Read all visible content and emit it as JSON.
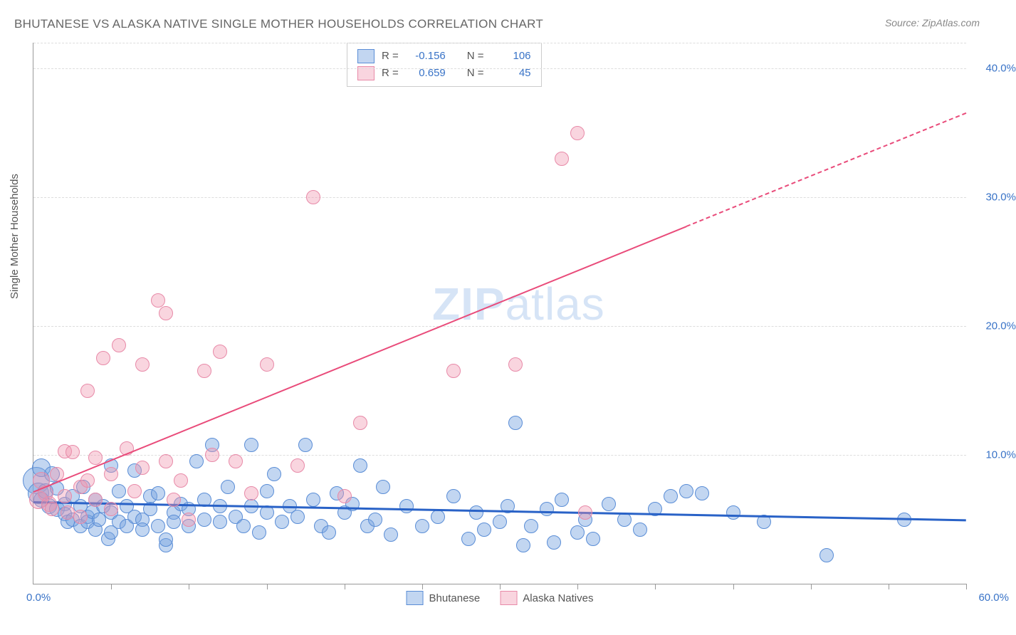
{
  "title": "BHUTANESE VS ALASKA NATIVE SINGLE MOTHER HOUSEHOLDS CORRELATION CHART",
  "source": "Source: ZipAtlas.com",
  "y_axis_label": "Single Mother Households",
  "watermark_1": "ZIP",
  "watermark_2": "atlas",
  "chart": {
    "type": "scatter",
    "title_fontsize": 17,
    "title_color": "#666666",
    "axis_label_fontsize": 15,
    "axis_label_color": "#555555",
    "tick_label_color": "#3973c7",
    "tick_label_fontsize": 15,
    "background_color": "#ffffff",
    "grid_color": "#dddddd",
    "grid_style": "dashed",
    "axis_line_color": "#999999",
    "xlim": [
      0,
      60
    ],
    "ylim": [
      0,
      42
    ],
    "x_tick_step": 5,
    "y_grid_positions": [
      10,
      20,
      30,
      40
    ],
    "y_tick_labels": [
      "10.0%",
      "20.0%",
      "30.0%",
      "40.0%"
    ],
    "x_origin_label": "0.0%",
    "x_end_label": "60.0%",
    "marker_radius_default": 8,
    "series": [
      {
        "name": "Bhutanese",
        "color_fill": "rgba(120,165,225,0.45)",
        "color_stroke": "#5a8dd6",
        "R": "-0.156",
        "N": "106",
        "trend": {
          "solid": {
            "x1": 0,
            "y1": 6.4,
            "x2": 60,
            "y2": 5.0,
            "color": "#2962c7",
            "width": 2.5
          }
        },
        "points": [
          [
            0.2,
            8.0,
            18
          ],
          [
            0.3,
            7.0,
            14
          ],
          [
            0.5,
            9.0,
            12
          ],
          [
            0.5,
            6.5,
            10
          ],
          [
            0.8,
            7.2,
            10
          ],
          [
            1.0,
            6.0,
            10
          ],
          [
            1.2,
            8.5,
            10
          ],
          [
            1.5,
            5.8,
            10
          ],
          [
            1.5,
            7.4,
            9
          ],
          [
            2.0,
            6.2,
            9
          ],
          [
            2.0,
            5.4,
            9
          ],
          [
            2.2,
            4.8,
            9
          ],
          [
            2.5,
            5.0,
            9
          ],
          [
            2.5,
            6.8,
            9
          ],
          [
            3.0,
            4.5,
            9
          ],
          [
            3.0,
            6.0,
            9
          ],
          [
            3.2,
            7.5,
            9
          ],
          [
            3.5,
            5.2,
            9
          ],
          [
            3.5,
            4.8,
            9
          ],
          [
            3.8,
            5.6,
            9
          ],
          [
            4.0,
            6.5,
            9
          ],
          [
            4.0,
            4.2,
            9
          ],
          [
            4.2,
            5.0,
            9
          ],
          [
            4.5,
            6.0,
            9
          ],
          [
            4.8,
            3.5,
            9
          ],
          [
            5.0,
            5.5,
            9
          ],
          [
            5.0,
            4.0,
            9
          ],
          [
            5.0,
            9.2,
            9
          ],
          [
            5.5,
            4.8,
            9
          ],
          [
            5.5,
            7.2,
            9
          ],
          [
            6.0,
            6.0,
            9
          ],
          [
            6.0,
            4.5,
            9
          ],
          [
            6.5,
            8.8,
            9
          ],
          [
            6.5,
            5.2,
            9
          ],
          [
            7.0,
            5.0,
            9
          ],
          [
            7.0,
            4.2,
            9
          ],
          [
            7.5,
            5.8,
            9
          ],
          [
            7.5,
            6.8,
            9
          ],
          [
            8.0,
            4.5,
            9
          ],
          [
            8.0,
            7.0,
            9
          ],
          [
            8.5,
            3.0,
            9
          ],
          [
            8.5,
            3.4,
            9
          ],
          [
            9.0,
            5.5,
            9
          ],
          [
            9.0,
            4.8,
            9
          ],
          [
            9.5,
            6.2,
            9
          ],
          [
            10.0,
            4.5,
            9
          ],
          [
            10.0,
            5.8,
            9
          ],
          [
            10.5,
            9.5,
            9
          ],
          [
            11.0,
            5.0,
            9
          ],
          [
            11.0,
            6.5,
            9
          ],
          [
            11.5,
            10.8,
            9
          ],
          [
            12.0,
            4.8,
            9
          ],
          [
            12.0,
            6.0,
            9
          ],
          [
            12.5,
            7.5,
            9
          ],
          [
            13.0,
            5.2,
            9
          ],
          [
            13.5,
            4.5,
            9
          ],
          [
            14.0,
            10.8,
            9
          ],
          [
            14.0,
            6.0,
            9
          ],
          [
            14.5,
            4.0,
            9
          ],
          [
            15.0,
            7.2,
            9
          ],
          [
            15.0,
            5.5,
            9
          ],
          [
            15.5,
            8.5,
            9
          ],
          [
            16.0,
            4.8,
            9
          ],
          [
            16.5,
            6.0,
            9
          ],
          [
            17.0,
            5.2,
            9
          ],
          [
            17.5,
            10.8,
            9
          ],
          [
            18.0,
            6.5,
            9
          ],
          [
            18.5,
            4.5,
            9
          ],
          [
            19.0,
            4.0,
            9
          ],
          [
            19.5,
            7.0,
            9
          ],
          [
            20.0,
            5.5,
            9
          ],
          [
            20.5,
            6.2,
            9
          ],
          [
            21.0,
            9.2,
            9
          ],
          [
            21.5,
            4.5,
            9
          ],
          [
            22.0,
            5.0,
            9
          ],
          [
            22.5,
            7.5,
            9
          ],
          [
            23.0,
            3.8,
            9
          ],
          [
            24.0,
            6.0,
            9
          ],
          [
            25.0,
            4.5,
            9
          ],
          [
            26.0,
            5.2,
            9
          ],
          [
            27.0,
            6.8,
            9
          ],
          [
            28.0,
            3.5,
            9
          ],
          [
            28.5,
            5.5,
            9
          ],
          [
            29.0,
            4.2,
            9
          ],
          [
            30.0,
            4.8,
            9
          ],
          [
            30.5,
            6.0,
            9
          ],
          [
            31.0,
            12.5,
            9
          ],
          [
            31.5,
            3.0,
            9
          ],
          [
            32.0,
            4.5,
            9
          ],
          [
            33.0,
            5.8,
            9
          ],
          [
            33.5,
            3.2,
            9
          ],
          [
            34.0,
            6.5,
            9
          ],
          [
            35.0,
            4.0,
            9
          ],
          [
            35.5,
            5.0,
            9
          ],
          [
            36.0,
            3.5,
            9
          ],
          [
            37.0,
            6.2,
            9
          ],
          [
            38.0,
            5.0,
            9
          ],
          [
            39.0,
            4.2,
            9
          ],
          [
            40.0,
            5.8,
            9
          ],
          [
            41.0,
            6.8,
            9
          ],
          [
            42.0,
            7.2,
            9
          ],
          [
            43.0,
            7.0,
            9
          ],
          [
            45.0,
            5.5,
            9
          ],
          [
            47.0,
            4.8,
            9
          ],
          [
            51.0,
            2.2,
            9
          ],
          [
            56.0,
            5.0,
            9
          ]
        ]
      },
      {
        "name": "Alaska Natives",
        "color_fill": "rgba(240,150,175,0.40)",
        "color_stroke": "#e88aa8",
        "R": "0.659",
        "N": "45",
        "trend": {
          "solid": {
            "x1": 0,
            "y1": 7.2,
            "x2": 42,
            "y2": 27.8,
            "color": "#e94b7a",
            "width": 2
          },
          "dashed": {
            "x1": 42,
            "y1": 27.8,
            "x2": 60,
            "y2": 36.6,
            "color": "#e94b7a",
            "width": 2
          }
        },
        "points": [
          [
            0.3,
            6.5,
            12
          ],
          [
            0.5,
            8.0,
            11
          ],
          [
            0.8,
            7.0,
            10
          ],
          [
            1.0,
            6.2,
            10
          ],
          [
            1.2,
            5.8,
            9
          ],
          [
            1.5,
            8.5,
            9
          ],
          [
            2.0,
            6.8,
            9
          ],
          [
            2.0,
            10.3,
            9
          ],
          [
            2.2,
            5.5,
            9
          ],
          [
            2.5,
            10.2,
            9
          ],
          [
            3.0,
            7.5,
            9
          ],
          [
            3.0,
            5.2,
            9
          ],
          [
            3.5,
            15.0,
            9
          ],
          [
            3.5,
            8.0,
            9
          ],
          [
            4.0,
            9.8,
            9
          ],
          [
            4.0,
            6.5,
            9
          ],
          [
            4.5,
            17.5,
            9
          ],
          [
            5.0,
            8.5,
            9
          ],
          [
            5.0,
            5.8,
            9
          ],
          [
            5.5,
            18.5,
            9
          ],
          [
            6.0,
            10.5,
            9
          ],
          [
            6.5,
            7.2,
            9
          ],
          [
            7.0,
            17.0,
            9
          ],
          [
            7.0,
            9.0,
            9
          ],
          [
            8.0,
            22.0,
            9
          ],
          [
            8.5,
            21.0,
            9
          ],
          [
            8.5,
            9.5,
            9
          ],
          [
            9.0,
            6.5,
            9
          ],
          [
            9.5,
            8.0,
            9
          ],
          [
            10.0,
            5.0,
            9
          ],
          [
            11.0,
            16.5,
            9
          ],
          [
            11.5,
            10.0,
            9
          ],
          [
            12.0,
            18.0,
            9
          ],
          [
            13.0,
            9.5,
            9
          ],
          [
            14.0,
            7.0,
            9
          ],
          [
            15.0,
            17.0,
            9
          ],
          [
            17.0,
            9.2,
            9
          ],
          [
            18.0,
            30.0,
            9
          ],
          [
            20.0,
            6.8,
            9
          ],
          [
            21.0,
            12.5,
            9
          ],
          [
            27.0,
            16.5,
            9
          ],
          [
            31.0,
            17.0,
            9
          ],
          [
            34.0,
            33.0,
            9
          ],
          [
            35.0,
            35.0,
            9
          ],
          [
            35.5,
            5.5,
            9
          ]
        ]
      }
    ],
    "legend_box": {
      "border_color": "#cccccc",
      "bg_color": "#ffffff",
      "rows": [
        {
          "swatch": "blue",
          "r_label": "R =",
          "r_value": "-0.156",
          "n_label": "N =",
          "n_value": "106"
        },
        {
          "swatch": "pink",
          "r_label": "R =",
          "r_value": "0.659",
          "n_label": "N =",
          "n_value": "45"
        }
      ]
    },
    "bottom_legend": [
      {
        "swatch": "blue",
        "label": "Bhutanese"
      },
      {
        "swatch": "pink",
        "label": "Alaska Natives"
      }
    ]
  }
}
